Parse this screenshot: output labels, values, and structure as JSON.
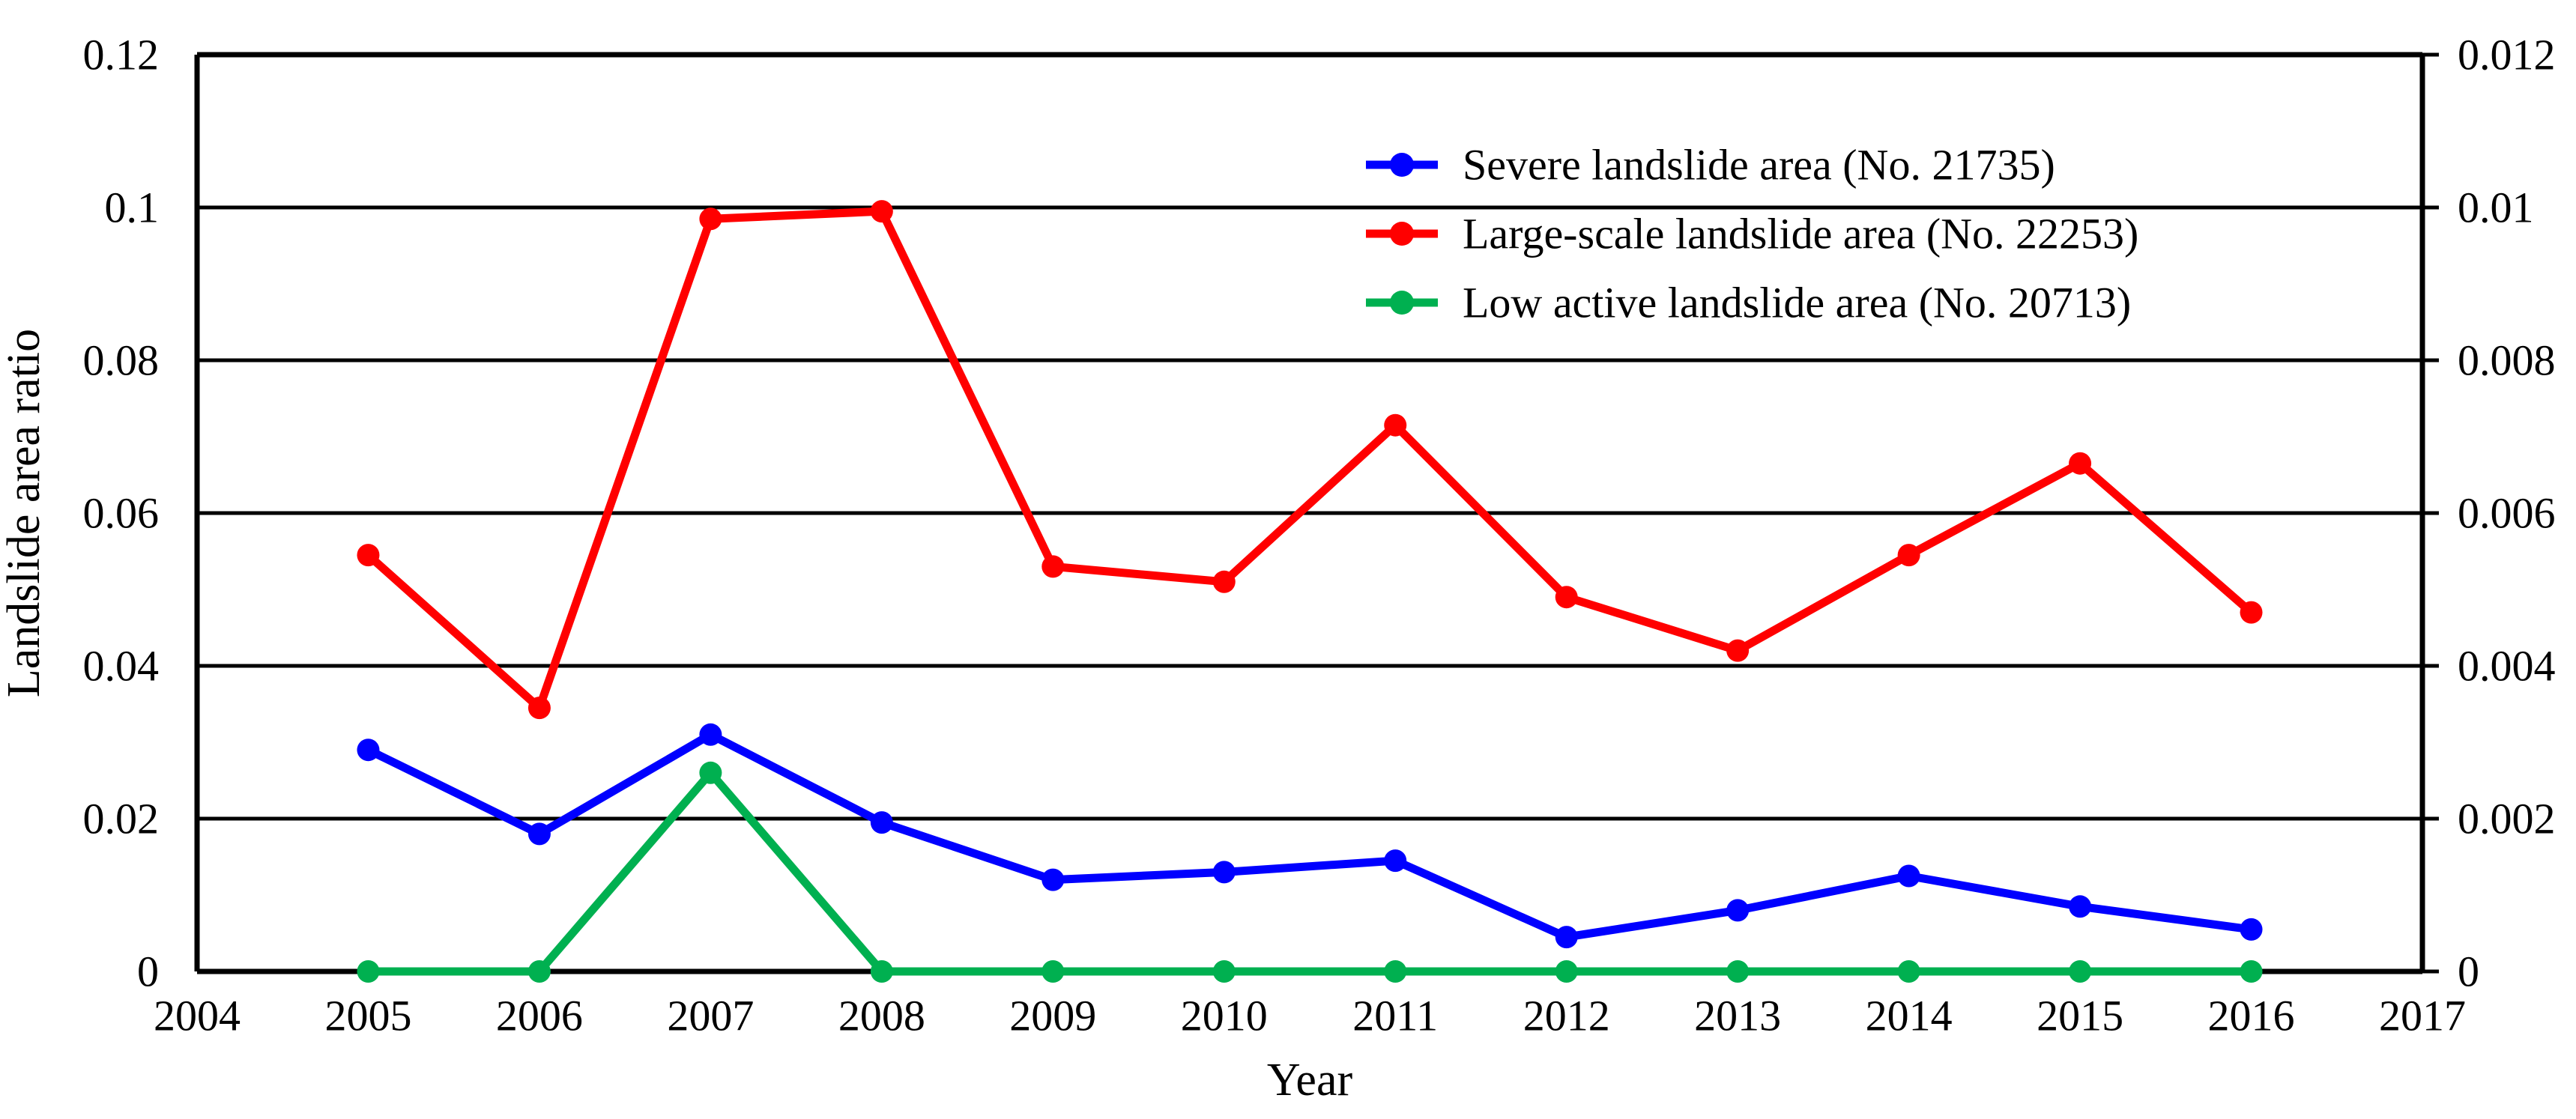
{
  "figure": {
    "background": "#ffffff",
    "axis_color": "#000000"
  },
  "chart_data": {
    "type": "line",
    "x": [
      2005,
      2006,
      2007,
      2008,
      2009,
      2010,
      2011,
      2012,
      2013,
      2014,
      2015,
      2016
    ],
    "series": [
      {
        "name": "Severe landslide area (No. 21735)",
        "color": "#0000FF",
        "values": [
          0.029,
          0.018,
          0.031,
          0.0195,
          0.012,
          0.013,
          0.0145,
          0.0045,
          0.008,
          0.0125,
          0.0085,
          0.0055
        ]
      },
      {
        "name": "Large-scale landslide area (No. 22253)",
        "color": "#FF0000",
        "values": [
          0.0545,
          0.0345,
          0.0985,
          0.0995,
          0.053,
          0.051,
          0.0715,
          0.049,
          0.042,
          0.0545,
          0.0665,
          0.047
        ]
      },
      {
        "name": "Low active landslide area (No. 20713)",
        "color": "#00B050",
        "values": [
          0,
          0,
          0.026,
          0,
          0,
          0,
          0,
          0,
          0,
          0,
          0,
          0
        ]
      }
    ],
    "xlabel": "Year",
    "ylabel_left": "Landslide area ratio",
    "xlim": [
      2004,
      2017
    ],
    "ylim_left": [
      0,
      0.12
    ],
    "ylim_right": [
      0,
      0.012
    ],
    "x_ticks": [
      "2004",
      "2005",
      "2006",
      "2007",
      "2008",
      "2009",
      "2010",
      "2011",
      "2012",
      "2013",
      "2014",
      "2015",
      "2016",
      "2017"
    ],
    "left_ticks": {
      "values": [
        0,
        0.02,
        0.04,
        0.06,
        0.08,
        0.1,
        0.12
      ],
      "labels": [
        "0",
        "0.02",
        "0.04",
        "0.06",
        "0.08",
        "0.1",
        "0.12"
      ]
    },
    "right_ticks": {
      "values": [
        0,
        0.002,
        0.004,
        0.006,
        0.008,
        0.01,
        0.012
      ],
      "labels": [
        "0",
        "0.002",
        "0.004",
        "0.006",
        "0.008",
        "0.01",
        "0.012"
      ]
    },
    "grid": true,
    "legend_position": "inside-upper-right",
    "marker": "circle"
  }
}
